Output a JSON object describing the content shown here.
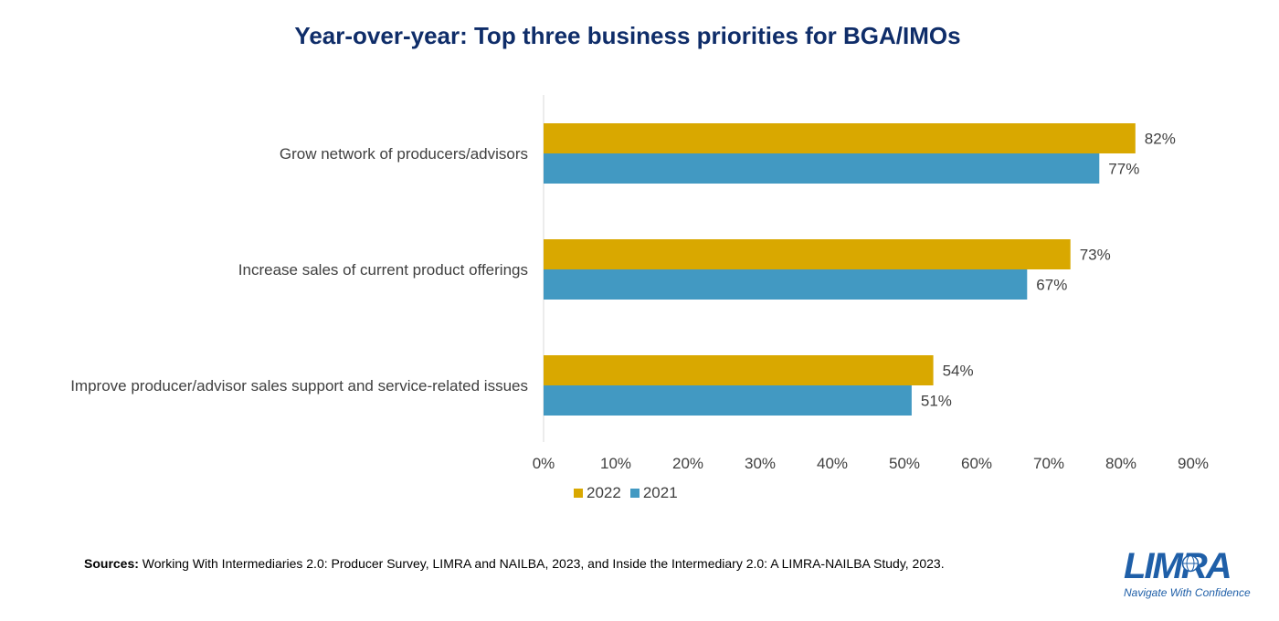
{
  "colors": {
    "series_2022": "#d9a800",
    "series_2021": "#4299c2",
    "title": "#0f2d69",
    "brand": "#1f5fa8",
    "axis": "#d9d9d9",
    "text": "#404040"
  },
  "chart_data": {
    "type": "bar",
    "orientation": "horizontal",
    "title": "Year-over-year: Top three business priorities for BGA/IMOs",
    "categories": [
      "Grow network of producers/advisors",
      "Increase sales of current product offerings",
      "Improve producer/advisor sales support and service-related issues"
    ],
    "series": [
      {
        "name": "2022",
        "values": [
          82,
          73,
          54
        ],
        "labels": [
          "82%",
          "73%",
          "54%"
        ]
      },
      {
        "name": "2021",
        "values": [
          77,
          67,
          51
        ],
        "labels": [
          "77%",
          "67%",
          "51%"
        ]
      }
    ],
    "xlim": [
      0,
      90
    ],
    "ticks": [
      0,
      10,
      20,
      30,
      40,
      50,
      60,
      70,
      80,
      90
    ],
    "tick_labels": [
      "0%",
      "10%",
      "20%",
      "30%",
      "40%",
      "50%",
      "60%",
      "70%",
      "80%",
      "90%"
    ],
    "grid": false,
    "legend_position": "bottom"
  },
  "footer": {
    "sources_label": "Sources:",
    "sources_text": " Working With Intermediaries 2.0: Producer Survey, LIMRA and NAILBA, 2023, and Inside the Intermediary 2.0: A LIMRA-NAILBA Study, 2023."
  },
  "logo": {
    "wordmark": "LIMRA",
    "tagline": "Navigate With Confidence",
    "globe_icon": "globe-icon"
  }
}
